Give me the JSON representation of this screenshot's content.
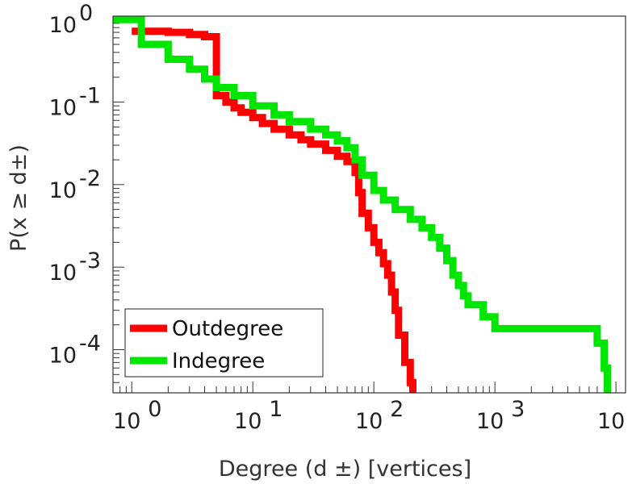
{
  "chart_data": {
    "type": "line",
    "step": true,
    "xscale": "log",
    "yscale": "log",
    "xlim": [
      0.7,
      12000
    ],
    "ylim": [
      3e-05,
      1.1
    ],
    "xlabel": "Degree (d ±) [vertices]",
    "ylabel": "P(x ≥ d±)",
    "xticks": [
      {
        "base": "10",
        "exp": "0",
        "value": 1
      },
      {
        "base": "10",
        "exp": "1",
        "value": 10
      },
      {
        "base": "10",
        "exp": "2",
        "value": 100
      },
      {
        "base": "10",
        "exp": "3",
        "value": 1000
      },
      {
        "base": "10",
        "exp": "4",
        "value": 10000
      }
    ],
    "yticks": [
      {
        "base": "10",
        "exp": "0",
        "value": 1
      },
      {
        "base": "10",
        "exp": "-1",
        "value": 0.1
      },
      {
        "base": "10",
        "exp": "-2",
        "value": 0.01
      },
      {
        "base": "10",
        "exp": "-3",
        "value": 0.001
      },
      {
        "base": "10",
        "exp": "-4",
        "value": 0.0001
      }
    ],
    "legend": {
      "position": "bottom-left"
    },
    "series": [
      {
        "name": "Outdegree",
        "color": "#ff0000",
        "points": [
          [
            1,
            0.72
          ],
          [
            2,
            0.7
          ],
          [
            3,
            0.66
          ],
          [
            4,
            0.62
          ],
          [
            5,
            0.12
          ],
          [
            6,
            0.1
          ],
          [
            7,
            0.085
          ],
          [
            8,
            0.075
          ],
          [
            10,
            0.065
          ],
          [
            12,
            0.055
          ],
          [
            15,
            0.047
          ],
          [
            20,
            0.04
          ],
          [
            25,
            0.035
          ],
          [
            30,
            0.031
          ],
          [
            40,
            0.026
          ],
          [
            50,
            0.022
          ],
          [
            60,
            0.019
          ],
          [
            70,
            0.014
          ],
          [
            75,
            0.008
          ],
          [
            80,
            0.0045
          ],
          [
            90,
            0.003
          ],
          [
            100,
            0.002
          ],
          [
            110,
            0.0015
          ],
          [
            120,
            0.0011
          ],
          [
            130,
            0.0008
          ],
          [
            140,
            0.0005
          ],
          [
            150,
            0.0003
          ],
          [
            160,
            0.00015
          ],
          [
            180,
            7e-05
          ],
          [
            200,
            4e-05
          ],
          [
            210,
            3e-05
          ]
        ]
      },
      {
        "name": "Indegree",
        "color": "#00e600",
        "points": [
          [
            0.7,
            1.0
          ],
          [
            1.2,
            1.0
          ],
          [
            1.2,
            0.5
          ],
          [
            2,
            0.33
          ],
          [
            3,
            0.25
          ],
          [
            4,
            0.19
          ],
          [
            5,
            0.15
          ],
          [
            7,
            0.12
          ],
          [
            10,
            0.09
          ],
          [
            15,
            0.07
          ],
          [
            20,
            0.058
          ],
          [
            30,
            0.047
          ],
          [
            40,
            0.04
          ],
          [
            50,
            0.034
          ],
          [
            60,
            0.028
          ],
          [
            70,
            0.02
          ],
          [
            80,
            0.013
          ],
          [
            100,
            0.0085
          ],
          [
            120,
            0.0065
          ],
          [
            150,
            0.005
          ],
          [
            200,
            0.0038
          ],
          [
            250,
            0.003
          ],
          [
            300,
            0.0023
          ],
          [
            350,
            0.0017
          ],
          [
            400,
            0.0012
          ],
          [
            450,
            0.0008
          ],
          [
            500,
            0.0006
          ],
          [
            550,
            0.00045
          ],
          [
            600,
            0.00035
          ],
          [
            800,
            0.00025
          ],
          [
            1000,
            0.00018
          ],
          [
            3000,
            0.00018
          ],
          [
            6000,
            0.00018
          ],
          [
            7000,
            0.00012
          ],
          [
            8000,
            6e-05
          ],
          [
            8500,
            3e-05
          ]
        ]
      }
    ]
  }
}
